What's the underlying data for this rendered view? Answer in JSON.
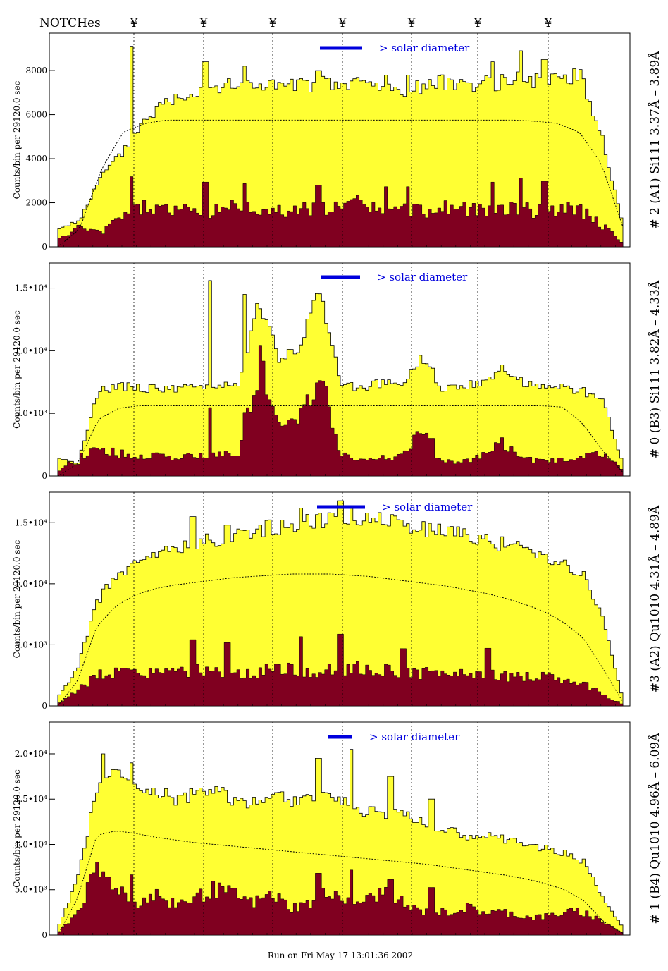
{
  "header": {
    "notches_label": "NOTCHes",
    "notch_symbol": "¥"
  },
  "footer": {
    "run_text": "Run on Fri May 17 13:01:36 2002"
  },
  "colors": {
    "total": "#ffff33",
    "dark": "#800020",
    "solar_bar": "#0000dd",
    "frame": "#000000"
  },
  "panels": [
    {
      "right_label": "# 2 (A1) Si111  3.37Å – 3.89Å",
      "ylabel": "Counts/bin per  29120.0 sec",
      "solar_label": "> solar diameter",
      "ytick_labels": [
        "0",
        "2000",
        "4000",
        "6000",
        "8000"
      ]
    },
    {
      "right_label": "# 0 (B3) Si111  3.82Å – 4.33Å",
      "ylabel": "Counts/bin per  29120.0 sec",
      "solar_label": "> solar diameter",
      "ytick_labels": [
        "0",
        "5.0•10³",
        "1.0•10⁴",
        "1.5•10⁴"
      ]
    },
    {
      "right_label": "#3 (A2) Qu1010  4.31Å – 4.89Å",
      "ylabel": "Counts/bin per  29120.0 sec",
      "solar_label": "> solar diameter",
      "ytick_labels": [
        "0",
        "5.0•10³",
        "1.0•10⁴",
        "1.5•10⁴"
      ]
    },
    {
      "right_label": "# 1 (B4) Qu1010 4.96Å – 6.09Å",
      "ylabel": "Counts/bin per  29120.0 sec",
      "solar_label": "> solar diameter",
      "ytick_labels": [
        "0",
        "5.0•10³",
        "1.0•10⁴",
        "1.5•10⁴",
        "2.0•10⁴"
      ]
    }
  ],
  "chart_data": [
    {
      "type": "area",
      "ylim": [
        0,
        9700
      ],
      "yticks": [
        0,
        2000,
        4000,
        6000,
        8000
      ],
      "series": [
        {
          "name": "",
          "bins": 27,
          "values": [
            800,
            1200,
            3200,
            4300,
            5800,
            6600,
            7000,
            7300,
            7300,
            7400,
            7300,
            7300,
            7400,
            7300,
            7500,
            7200,
            7100,
            7300,
            7500,
            7400,
            7400,
            7600,
            7500,
            7700,
            7800,
            5200,
            1000
          ]
        },
        {
          "name": "",
          "values": [
            300,
            900,
            600,
            1500,
            1800,
            1700,
            1600,
            1600,
            1900,
            1700,
            1600,
            1700,
            1800,
            1700,
            2100,
            1500,
            1700,
            1600,
            1800,
            1700,
            1600,
            1800,
            1600,
            1700,
            1700,
            1000,
            200
          ]
        },
        {
          "name": "",
          "values": [
            0,
            800,
            3500,
            5200,
            5600,
            5750,
            5750,
            5750,
            5750,
            5750,
            5750,
            5750,
            5750,
            5750,
            5750,
            5750,
            5750,
            5750,
            5750,
            5750,
            5750,
            5750,
            5700,
            5600,
            5200,
            3800,
            900
          ]
        }
      ],
      "spikes": [
        [
          0.13,
          9100
        ],
        [
          0.26,
          8400
        ],
        [
          0.33,
          8200
        ],
        [
          0.46,
          8000
        ],
        [
          0.58,
          7800
        ],
        [
          0.62,
          7800
        ],
        [
          0.77,
          8400
        ],
        [
          0.82,
          8900
        ],
        [
          0.86,
          8500
        ]
      ]
    },
    {
      "type": "area",
      "ylim": [
        0,
        17000
      ],
      "yticks": [
        0,
        5000,
        10000,
        15000
      ],
      "series": [
        {
          "name": "",
          "bins": 29,
          "values": [
            1500,
            1000,
            6800,
            7200,
            7000,
            7000,
            6900,
            7100,
            7200,
            7500,
            14000,
            9000,
            10500,
            15000,
            7500,
            7000,
            7400,
            7200,
            9500,
            7000,
            7200,
            7500,
            8500,
            7500,
            7200,
            7000,
            6800,
            6000,
            1000
          ]
        },
        {
          "name": "",
          "values": [
            400,
            1500,
            2200,
            1800,
            1500,
            1700,
            1500,
            1600,
            1700,
            2000,
            9000,
            3500,
            5000,
            8500,
            1700,
            1200,
            1500,
            1500,
            3500,
            1200,
            1200,
            1500,
            2800,
            1300,
            1300,
            1200,
            1500,
            1800,
            500
          ]
        },
        {
          "name": "",
          "values": [
            0,
            1000,
            4500,
            5400,
            5600,
            5600,
            5600,
            5600,
            5600,
            5600,
            5600,
            5600,
            5600,
            5600,
            5600,
            5600,
            5600,
            5600,
            5600,
            5600,
            5600,
            5600,
            5600,
            5600,
            5600,
            5500,
            4200,
            2000,
            300
          ]
        }
      ],
      "spikes": [
        [
          0.27,
          15600
        ],
        [
          0.33,
          14500
        ],
        [
          0.49,
          9500
        ],
        [
          0.66,
          8600
        ]
      ]
    },
    {
      "type": "area",
      "ylim": [
        0,
        17500
      ],
      "yticks": [
        0,
        5000,
        10000,
        15000
      ],
      "series": [
        {
          "name": "",
          "bins": 30,
          "values": [
            700,
            3000,
            8500,
            10500,
            11500,
            12300,
            12800,
            13200,
            13600,
            14000,
            14300,
            14600,
            14900,
            15200,
            15300,
            15500,
            15500,
            15200,
            14800,
            14500,
            14300,
            14000,
            13600,
            13200,
            12700,
            12300,
            11600,
            10500,
            7000,
            500
          ]
        },
        {
          "name": "",
          "values": [
            200,
            1200,
            2500,
            2800,
            2500,
            2700,
            2600,
            2800,
            3000,
            2700,
            2800,
            2900,
            3000,
            2800,
            3000,
            3000,
            3200,
            2800,
            2600,
            2700,
            2600,
            2700,
            2500,
            2400,
            2500,
            2400,
            2200,
            1800,
            1000,
            100
          ]
        },
        {
          "name": "",
          "values": [
            0,
            2000,
            6500,
            8200,
            9100,
            9600,
            9900,
            10100,
            10300,
            10500,
            10600,
            10700,
            10800,
            10800,
            10800,
            10700,
            10600,
            10400,
            10200,
            10000,
            9800,
            9500,
            9200,
            8800,
            8300,
            7700,
            6800,
            5500,
            3000,
            300
          ]
        }
      ],
      "spikes": [
        [
          0.24,
          15500
        ],
        [
          0.3,
          14800
        ],
        [
          0.43,
          16200
        ],
        [
          0.5,
          16800
        ],
        [
          0.61,
          13400
        ],
        [
          0.76,
          13500
        ]
      ]
    },
    {
      "type": "area",
      "ylim": [
        0,
        23500
      ],
      "yticks": [
        0,
        5000,
        10000,
        15000,
        20000
      ],
      "series": [
        {
          "name": "",
          "bins": 30,
          "values": [
            800,
            6000,
            16000,
            18000,
            16500,
            16000,
            15000,
            15500,
            16000,
            15000,
            14500,
            16000,
            14500,
            15000,
            16000,
            14000,
            13500,
            13500,
            13000,
            12000,
            11500,
            11000,
            11000,
            10500,
            10000,
            9500,
            9000,
            8000,
            4000,
            800
          ]
        },
        {
          "name": "",
          "values": [
            200,
            2500,
            7000,
            5500,
            3500,
            4500,
            3500,
            4000,
            5000,
            4500,
            3500,
            4500,
            3000,
            3500,
            5000,
            3500,
            4000,
            5000,
            3000,
            2500,
            2500,
            3000,
            2500,
            2500,
            2000,
            2000,
            2500,
            2500,
            1500,
            200
          ]
        },
        {
          "name": "",
          "values": [
            0,
            4000,
            11000,
            11500,
            11200,
            10800,
            10500,
            10200,
            10000,
            9800,
            9600,
            9400,
            9200,
            9000,
            8800,
            8600,
            8400,
            8200,
            8000,
            7800,
            7500,
            7200,
            6900,
            6600,
            6200,
            5700,
            5000,
            3800,
            1500,
            200
          ]
        }
      ],
      "spikes": [
        [
          0.08,
          20000
        ],
        [
          0.13,
          19000
        ],
        [
          0.46,
          19500
        ],
        [
          0.52,
          20500
        ],
        [
          0.59,
          17500
        ],
        [
          0.66,
          15000
        ]
      ]
    }
  ]
}
